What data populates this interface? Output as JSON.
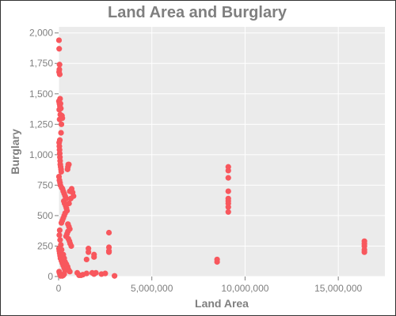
{
  "chart_data": {
    "type": "scatter",
    "title": "Land Area and Burglary",
    "xlabel": "Land Area",
    "ylabel": "Burglary",
    "xlim": [
      0,
      17500000
    ],
    "ylim": [
      0,
      2050
    ],
    "x_ticks": [
      0,
      5000000,
      10000000,
      15000000
    ],
    "x_tick_labels": [
      "0",
      "5,000,000",
      "10,000,000",
      "15,000,000"
    ],
    "y_ticks": [
      0,
      250,
      500,
      750,
      1000,
      1250,
      1500,
      1750,
      2000
    ],
    "y_tick_labels": [
      "0",
      "250",
      "500",
      "750",
      "1,000",
      "1,250",
      "1,500",
      "1,750",
      "2,000"
    ],
    "grid": true,
    "background": "#ebebeb",
    "grid_color": "#ffffff",
    "point_color": "#f8575d",
    "x": [
      20000,
      30000,
      50000,
      40000,
      25000,
      60000,
      15000,
      45000,
      70000,
      35000,
      80000,
      100000,
      120000,
      90000,
      55000,
      150000,
      180000,
      200000,
      130000,
      65000,
      30000,
      40000,
      50000,
      60000,
      70000,
      80000,
      90000,
      110000,
      130000,
      140000,
      20000,
      45000,
      75000,
      95000,
      160000,
      210000,
      250000,
      300000,
      350000,
      400000,
      280000,
      320000,
      380000,
      420000,
      450000,
      350000,
      300000,
      250000,
      200000,
      150000,
      500000,
      550000,
      600000,
      500000,
      450000,
      400000,
      520000,
      580000,
      620000,
      680000,
      700000,
      750000,
      800000,
      650000,
      600000,
      550000,
      500000,
      480000,
      520000,
      560000,
      20000,
      40000,
      60000,
      80000,
      100000,
      150000,
      200000,
      250000,
      300000,
      350000,
      30000,
      50000,
      70000,
      90000,
      110000,
      60000,
      40000,
      80000,
      120000,
      160000,
      250000,
      300000,
      350000,
      420000,
      480000,
      520000,
      600000,
      300000,
      250000,
      200000,
      1600000,
      1600000,
      1500000,
      1900000,
      1900000,
      1900000,
      2700000,
      2700000,
      2700000,
      2700000,
      1000000,
      1100000,
      1300000,
      1500000,
      2000000,
      2300000,
      2500000,
      3000000,
      1200000,
      1800000,
      8500000,
      8500000,
      9100000,
      9100000,
      9100000,
      9100000,
      9100000,
      9100000,
      9100000,
      9100000,
      9100000,
      16400000,
      16400000,
      16400000,
      16400000,
      16400000
    ],
    "y": [
      1940,
      1870,
      1740,
      1700,
      1680,
      1660,
      1440,
      1420,
      1400,
      1370,
      1460,
      1420,
      1380,
      1330,
      1290,
      1250,
      1320,
      1300,
      1180,
      1120,
      1100,
      1070,
      1040,
      1010,
      980,
      950,
      920,
      900,
      880,
      860,
      820,
      790,
      770,
      750,
      730,
      720,
      700,
      680,
      660,
      640,
      620,
      600,
      580,
      560,
      540,
      520,
      500,
      480,
      460,
      440,
      430,
      410,
      390,
      370,
      350,
      330,
      310,
      290,
      270,
      250,
      720,
      690,
      660,
      640,
      700,
      920,
      900,
      880,
      920,
      600,
      230,
      210,
      190,
      170,
      150,
      130,
      110,
      90,
      70,
      50,
      40,
      30,
      20,
      10,
      5,
      380,
      340,
      300,
      260,
      220,
      180,
      150,
      120,
      100,
      80,
      60,
      40,
      20,
      10,
      5,
      230,
      200,
      140,
      180,
      160,
      20,
      360,
      240,
      210,
      200,
      30,
      10,
      15,
      25,
      30,
      20,
      25,
      5,
      10,
      30,
      140,
      120,
      900,
      870,
      810,
      700,
      640,
      620,
      600,
      570,
      530,
      290,
      270,
      250,
      220,
      200
    ]
  }
}
